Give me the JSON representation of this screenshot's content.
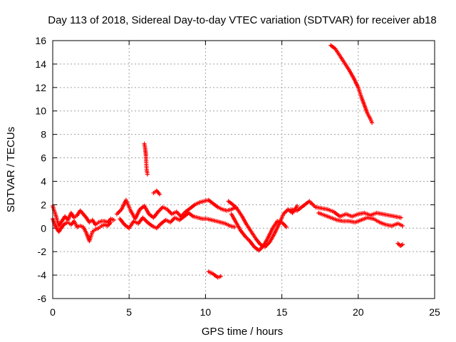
{
  "chart_data": {
    "type": "scatter",
    "title": "Day 113 of 2018, Sidereal Day-to-day VTEC variation (SDTVAR) for receiver ab18",
    "xlabel": "GPS time / hours",
    "ylabel": "SDTVAR / TECUs",
    "xlim": [
      0,
      25
    ],
    "ylim": [
      -6,
      16
    ],
    "xticks": [
      0,
      5,
      10,
      15,
      20,
      25
    ],
    "yticks": [
      -6,
      -4,
      -2,
      0,
      2,
      4,
      6,
      8,
      10,
      12,
      14,
      16
    ],
    "grid": true,
    "marker": "+",
    "color": "#ff0000",
    "series": [
      {
        "name": "SDTVAR",
        "segments": [
          [
            [
              0.0,
              1.9
            ],
            [
              0.2,
              1.1
            ],
            [
              0.4,
              0.2
            ],
            [
              0.6,
              0.6
            ],
            [
              0.8,
              1.0
            ],
            [
              1.0,
              0.7
            ],
            [
              1.2,
              1.3
            ],
            [
              1.4,
              0.9
            ],
            [
              1.6,
              1.1
            ],
            [
              1.8,
              1.5
            ],
            [
              2.0,
              1.2
            ],
            [
              2.2,
              0.9
            ],
            [
              2.4,
              0.5
            ],
            [
              2.6,
              0.7
            ],
            [
              2.8,
              0.3
            ],
            [
              3.0,
              0.5
            ],
            [
              3.2,
              0.6
            ],
            [
              3.4,
              0.6
            ],
            [
              3.6,
              0.5
            ],
            [
              3.8,
              0.8
            ],
            [
              4.0,
              0.7
            ]
          ],
          [
            [
              0.0,
              0.8
            ],
            [
              0.2,
              0.1
            ],
            [
              0.4,
              -0.3
            ],
            [
              0.6,
              0.1
            ],
            [
              0.8,
              0.4
            ],
            [
              1.0,
              0.5
            ],
            [
              1.2,
              0.3
            ],
            [
              1.4,
              0.6
            ],
            [
              1.6,
              0.1
            ],
            [
              1.8,
              0.2
            ],
            [
              2.0,
              0.1
            ],
            [
              2.2,
              -0.4
            ],
            [
              2.4,
              -1.1
            ],
            [
              2.6,
              -0.3
            ],
            [
              2.8,
              -0.1
            ],
            [
              3.0,
              0.0
            ],
            [
              3.2,
              0.2
            ],
            [
              3.4,
              0.3
            ],
            [
              3.6,
              0.2
            ],
            [
              3.8,
              0.5
            ]
          ],
          [
            [
              4.2,
              1.2
            ],
            [
              4.5,
              1.6
            ],
            [
              4.8,
              2.4
            ],
            [
              5.1,
              1.5
            ],
            [
              5.4,
              0.8
            ],
            [
              5.7,
              1.6
            ],
            [
              6.0,
              1.9
            ],
            [
              6.3,
              1.2
            ],
            [
              6.6,
              0.9
            ],
            [
              6.9,
              1.4
            ],
            [
              7.2,
              1.8
            ],
            [
              7.5,
              1.6
            ],
            [
              7.8,
              1.2
            ],
            [
              8.1,
              1.4
            ],
            [
              8.4,
              1.0
            ],
            [
              8.7,
              1.4
            ],
            [
              9.0,
              1.7
            ],
            [
              9.3,
              2.0
            ],
            [
              9.6,
              2.2
            ],
            [
              9.9,
              2.3
            ],
            [
              10.2,
              2.4
            ],
            [
              10.5,
              2.1
            ],
            [
              10.8,
              1.8
            ],
            [
              11.1,
              1.6
            ],
            [
              11.4,
              1.5
            ],
            [
              11.7,
              1.6
            ],
            [
              12.0,
              1.8
            ]
          ],
          [
            [
              4.4,
              0.8
            ],
            [
              4.7,
              0.3
            ],
            [
              5.0,
              0.0
            ],
            [
              5.3,
              0.6
            ],
            [
              5.6,
              0.4
            ],
            [
              5.9,
              0.9
            ],
            [
              6.2,
              0.5
            ],
            [
              6.5,
              0.2
            ],
            [
              6.8,
              0.0
            ],
            [
              7.1,
              0.4
            ],
            [
              7.4,
              0.7
            ],
            [
              7.7,
              0.5
            ],
            [
              8.0,
              0.9
            ],
            [
              8.3,
              0.7
            ],
            [
              8.6,
              1.0
            ],
            [
              8.9,
              1.3
            ],
            [
              9.2,
              1.0
            ],
            [
              9.5,
              0.9
            ],
            [
              9.8,
              0.8
            ],
            [
              10.1,
              0.8
            ],
            [
              10.4,
              0.7
            ],
            [
              10.7,
              0.6
            ],
            [
              11.0,
              0.5
            ],
            [
              11.3,
              0.4
            ],
            [
              11.6,
              0.2
            ],
            [
              11.9,
              0.1
            ]
          ],
          [
            [
              6.0,
              7.2
            ],
            [
              6.05,
              6.8
            ],
            [
              6.1,
              6.2
            ],
            [
              6.12,
              5.6
            ],
            [
              6.15,
              5.0
            ],
            [
              6.2,
              4.6
            ]
          ],
          [
            [
              6.6,
              3.0
            ],
            [
              6.8,
              3.2
            ],
            [
              7.0,
              2.9
            ]
          ],
          [
            [
              10.2,
              -3.7
            ],
            [
              10.5,
              -3.9
            ],
            [
              10.8,
              -4.2
            ],
            [
              11.0,
              -4.1
            ]
          ],
          [
            [
              11.5,
              2.3
            ],
            [
              11.8,
              2.0
            ],
            [
              12.1,
              1.6
            ],
            [
              12.4,
              1.0
            ],
            [
              12.7,
              0.3
            ],
            [
              13.0,
              -0.3
            ],
            [
              13.3,
              -0.9
            ],
            [
              13.6,
              -1.4
            ],
            [
              13.9,
              -1.6
            ],
            [
              14.2,
              -1.2
            ],
            [
              14.5,
              -0.5
            ],
            [
              14.8,
              0.3
            ],
            [
              15.1,
              1.2
            ],
            [
              15.4,
              1.6
            ],
            [
              15.7,
              1.3
            ],
            [
              16.0,
              1.9
            ]
          ],
          [
            [
              11.7,
              1.2
            ],
            [
              12.0,
              0.5
            ],
            [
              12.3,
              -0.2
            ],
            [
              12.6,
              -0.7
            ],
            [
              12.9,
              -1.1
            ],
            [
              13.2,
              -1.6
            ],
            [
              13.5,
              -1.9
            ],
            [
              13.8,
              -1.5
            ],
            [
              14.1,
              -0.8
            ],
            [
              14.4,
              0.0
            ],
            [
              14.7,
              0.6
            ],
            [
              15.0,
              0.5
            ],
            [
              15.3,
              0.1
            ]
          ],
          [
            [
              15.6,
              1.6
            ],
            [
              16.0,
              1.5
            ],
            [
              16.4,
              1.9
            ],
            [
              16.8,
              2.3
            ],
            [
              17.2,
              1.8
            ],
            [
              17.6,
              1.7
            ],
            [
              18.0,
              1.6
            ],
            [
              18.4,
              1.4
            ],
            [
              18.8,
              1.0
            ],
            [
              19.2,
              1.2
            ],
            [
              19.6,
              1.0
            ],
            [
              20.0,
              1.2
            ],
            [
              20.4,
              1.3
            ],
            [
              20.8,
              1.1
            ],
            [
              21.2,
              1.3
            ],
            [
              21.6,
              1.2
            ],
            [
              22.0,
              1.1
            ],
            [
              22.4,
              1.0
            ],
            [
              22.8,
              0.9
            ]
          ],
          [
            [
              17.4,
              1.3
            ],
            [
              17.8,
              1.1
            ],
            [
              18.2,
              0.9
            ],
            [
              18.6,
              0.7
            ],
            [
              19.0,
              0.6
            ],
            [
              19.4,
              0.6
            ],
            [
              19.8,
              0.5
            ],
            [
              20.2,
              0.7
            ],
            [
              20.6,
              0.9
            ],
            [
              21.0,
              0.8
            ],
            [
              21.4,
              0.5
            ],
            [
              21.8,
              0.3
            ],
            [
              22.2,
              0.2
            ],
            [
              22.6,
              0.4
            ],
            [
              22.9,
              0.2
            ]
          ],
          [
            [
              18.2,
              15.6
            ],
            [
              18.5,
              15.3
            ],
            [
              18.8,
              14.7
            ],
            [
              19.1,
              14.1
            ],
            [
              19.4,
              13.5
            ],
            [
              19.7,
              12.8
            ],
            [
              20.0,
              12.0
            ],
            [
              20.2,
              11.2
            ],
            [
              20.4,
              10.5
            ],
            [
              20.6,
              9.8
            ],
            [
              20.8,
              9.3
            ],
            [
              20.9,
              9.0
            ]
          ],
          [
            [
              22.6,
              -1.3
            ],
            [
              22.75,
              -1.5
            ],
            [
              22.9,
              -1.4
            ]
          ]
        ]
      }
    ]
  }
}
